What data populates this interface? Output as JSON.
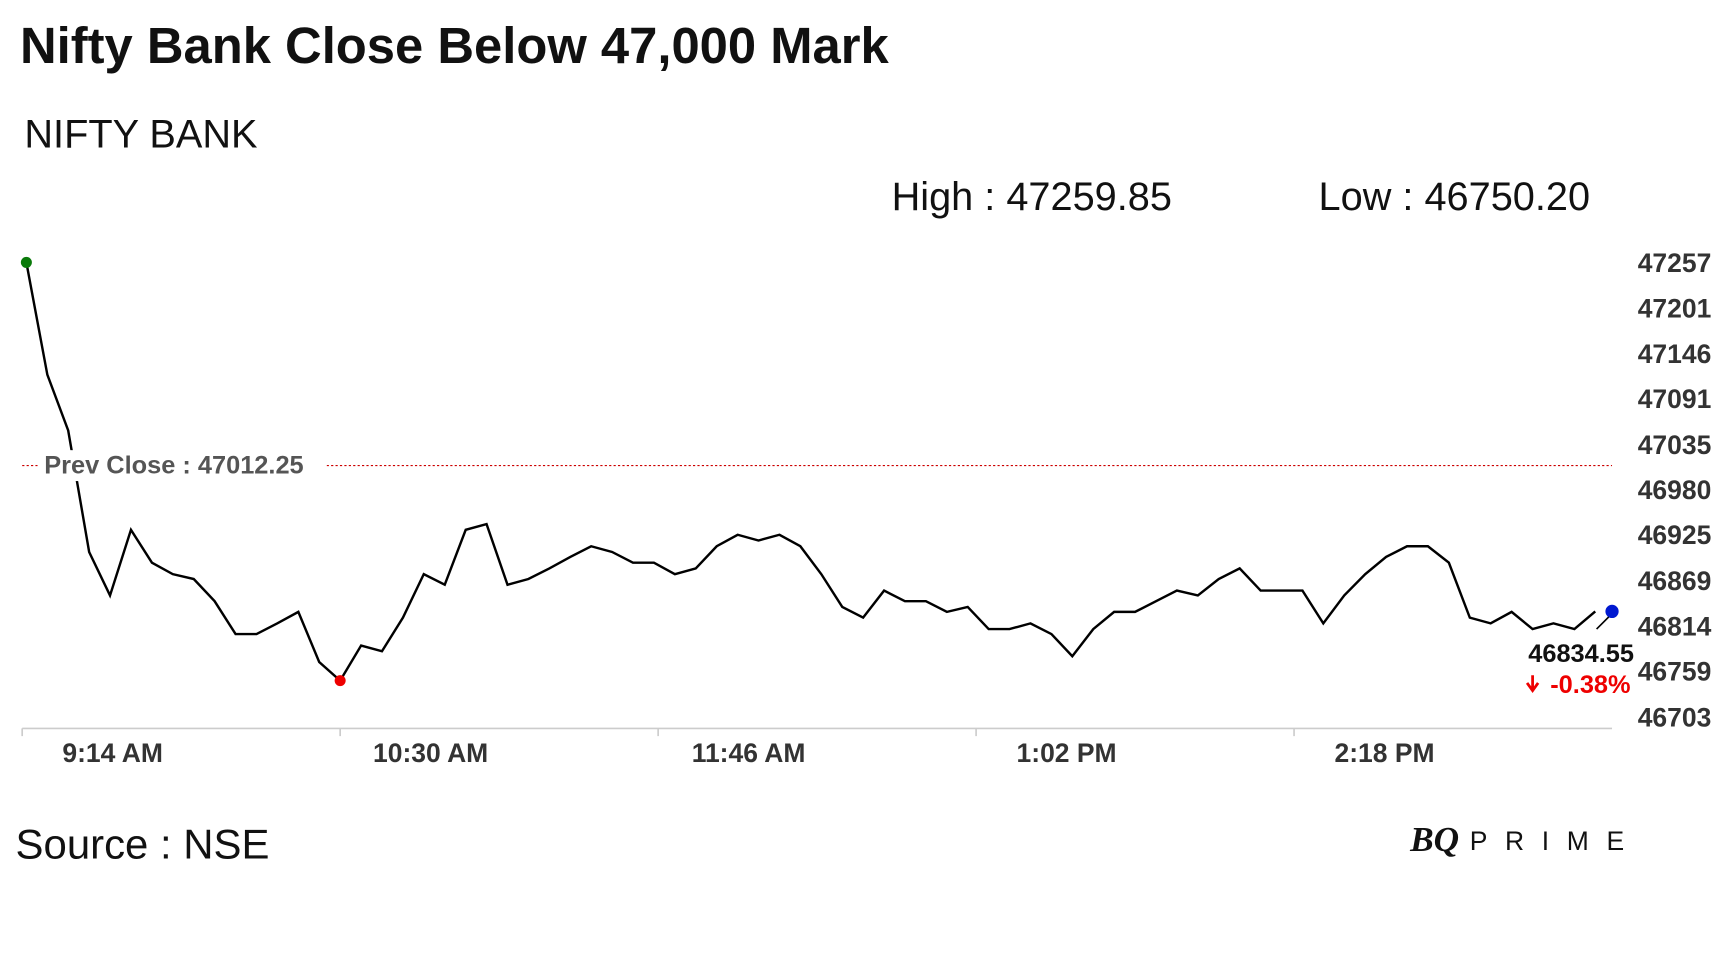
{
  "chart_data": {
    "type": "line",
    "title": "Nifty Bank Close Below 47,000 Mark",
    "subtitle": "NIFTY BANK",
    "high": {
      "value": 47259.85,
      "label": "High : 47259.85"
    },
    "low": {
      "value": 46750.2,
      "label": "Low : 46750.20"
    },
    "prev_close": {
      "value": 47012.25,
      "label": "Prev Close : 47012.25"
    },
    "change": {
      "value": -0.38,
      "label": "-0.38%"
    },
    "source": "Source : NSE",
    "logo": [
      "BQ",
      "PRIME"
    ],
    "color": "#000000",
    "x": [
      555,
      560,
      565,
      570,
      575,
      580,
      585,
      590,
      595,
      600,
      605,
      610,
      615,
      620,
      625,
      630,
      635,
      640,
      645,
      650,
      655,
      660,
      665,
      670,
      675,
      680,
      685,
      690,
      695,
      700,
      705,
      710,
      715,
      720,
      725,
      730,
      735,
      740,
      745,
      750,
      755,
      760,
      765,
      770,
      775,
      780,
      785,
      790,
      795,
      800,
      805,
      810,
      815,
      820,
      825,
      830,
      835,
      840,
      845,
      850,
      855,
      860,
      865,
      870,
      875,
      880,
      885,
      890,
      895,
      900,
      905,
      910,
      915,
      920,
      925,
      930
    ],
    "values": [
      47259.85,
      47123,
      47055,
      46907,
      46854,
      46934,
      46894,
      46880,
      46874,
      46847,
      46807,
      46807,
      46820,
      46834,
      46773,
      46750.2,
      46793,
      46786,
      46827,
      46880,
      46867,
      46934,
      46941,
      46867,
      46874,
      46887,
      46901,
      46914,
      46907,
      46894,
      46894,
      46880,
      46887,
      46914,
      46928,
      46921,
      46928,
      46914,
      46880,
      46840,
      46827,
      46860,
      46847,
      46847,
      46834,
      46840,
      46813,
      46813,
      46820,
      46807,
      46780,
      46813,
      46834,
      46834,
      46847,
      46860,
      46854,
      46874,
      46887,
      46860,
      46860,
      46860,
      46820,
      46854,
      46880,
      46901,
      46914,
      46914,
      46894,
      46827,
      46820,
      46834,
      46813,
      46820,
      46813,
      46834.55
    ],
    "xlim": [
      554,
      934
    ],
    "xticks": [
      {
        "value": 554,
        "label": "9:14 AM"
      },
      {
        "value": 630,
        "label": "10:30 AM"
      },
      {
        "value": 706,
        "label": "11:46 AM"
      },
      {
        "value": 782,
        "label": "1:02 PM"
      },
      {
        "value": 858,
        "label": "2:18 PM"
      }
    ],
    "ylim": [
      46692,
      47268
    ],
    "yticks": [
      47257,
      47201,
      47146,
      47091,
      47035,
      46980,
      46925,
      46869,
      46814,
      46759,
      46703
    ],
    "grid": false
  }
}
